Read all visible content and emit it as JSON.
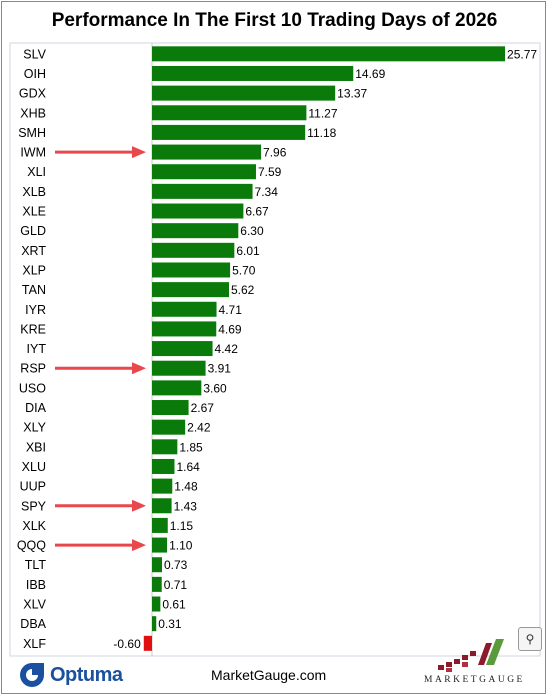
{
  "chart_data": {
    "type": "bar",
    "orientation": "horizontal",
    "title": "Performance In The First 10 Trading Days of 2026",
    "categories": [
      "SLV",
      "OIH",
      "GDX",
      "XHB",
      "SMH",
      "IWM",
      "XLI",
      "XLB",
      "XLE",
      "GLD",
      "XRT",
      "XLP",
      "TAN",
      "IYR",
      "KRE",
      "IYT",
      "RSP",
      "USO",
      "DIA",
      "XLY",
      "XBI",
      "XLU",
      "UUP",
      "SPY",
      "XLK",
      "QQQ",
      "TLT",
      "IBB",
      "XLV",
      "DBA",
      "XLF"
    ],
    "values": [
      25.77,
      14.69,
      13.37,
      11.27,
      11.18,
      7.96,
      7.59,
      7.34,
      6.67,
      6.3,
      6.01,
      5.7,
      5.62,
      4.71,
      4.69,
      4.42,
      3.91,
      3.6,
      2.67,
      2.42,
      1.85,
      1.64,
      1.48,
      1.43,
      1.15,
      1.1,
      0.73,
      0.71,
      0.61,
      0.31,
      -0.6
    ],
    "value_labels": [
      "25.77",
      "14.69",
      "13.37",
      "11.27",
      "11.18",
      "7.96",
      "7.59",
      "7.34",
      "6.67",
      "6.30",
      "6.01",
      "5.70",
      "5.62",
      "4.71",
      "4.69",
      "4.42",
      "3.91",
      "3.60",
      "2.67",
      "2.42",
      "1.85",
      "1.64",
      "1.48",
      "1.43",
      "1.15",
      "1.10",
      "0.73",
      "0.71",
      "0.61",
      "0.31",
      "-0.60"
    ],
    "highlighted": [
      "IWM",
      "RSP",
      "SPY",
      "QQQ"
    ],
    "colors": {
      "positive": "#0a7a0a",
      "negative": "#e01010",
      "arrow": "#e8474c"
    },
    "grid": false,
    "legend": "none"
  },
  "footer": {
    "left_brand": "Optuma",
    "center_text": "MarketGauge.com",
    "right_brand": "MARKETGAUGE"
  },
  "icons": {
    "zoom": "magnifier-icon",
    "optuma": "optuma-logo-icon",
    "marketgauge": "marketgauge-logo-icon"
  }
}
